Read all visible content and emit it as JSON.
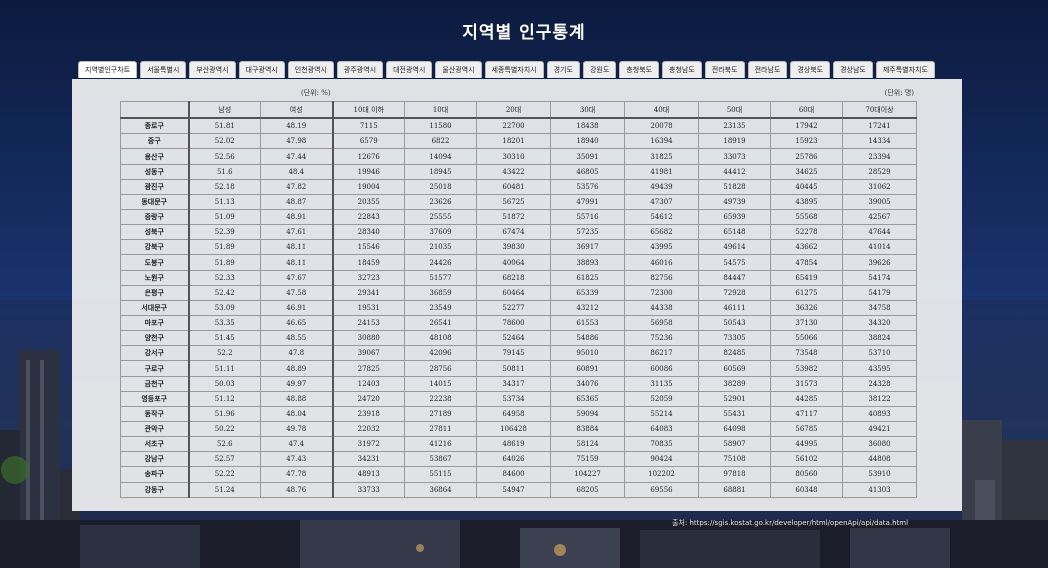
{
  "title": "지역별 인구통계",
  "tabs": [
    "서울특별시",
    "서울특별시",
    "부산광역시",
    "대구광역시",
    "인천광역시",
    "광주광역시",
    "대전광역시",
    "울산광역시",
    "세종특별자치시",
    "경기도",
    "강원도",
    "충청북도",
    "충청남도",
    "전라북도",
    "전라남도",
    "경상북도",
    "경상남도",
    "제주특별자치도"
  ],
  "tab_first": "지역별인구차트",
  "unit_percent": "(단위: %)",
  "unit_people": "(단위: 명)",
  "columns": [
    "",
    "남성",
    "여성",
    "10대 이하",
    "10대",
    "20대",
    "30대",
    "40대",
    "50대",
    "60대",
    "70대이상"
  ],
  "rows": [
    [
      "종로구",
      "51.81",
      "48.19",
      "7115",
      "11580",
      "22700",
      "18438",
      "20078",
      "23135",
      "17942",
      "17241"
    ],
    [
      "중구",
      "52.02",
      "47.98",
      "6579",
      "6822",
      "18201",
      "18940",
      "16394",
      "18919",
      "15923",
      "14334"
    ],
    [
      "용산구",
      "52.56",
      "47.44",
      "12676",
      "14094",
      "30310",
      "35091",
      "31825",
      "33073",
      "25786",
      "23394"
    ],
    [
      "성동구",
      "51.6",
      "48.4",
      "19946",
      "18945",
      "43422",
      "46805",
      "41981",
      "44412",
      "34625",
      "28529"
    ],
    [
      "광진구",
      "52.18",
      "47.82",
      "19004",
      "25018",
      "60481",
      "53576",
      "49439",
      "51828",
      "40445",
      "31062"
    ],
    [
      "동대문구",
      "51.13",
      "48.87",
      "20355",
      "23626",
      "56725",
      "47991",
      "47307",
      "49739",
      "43895",
      "39005"
    ],
    [
      "중랑구",
      "51.09",
      "48.91",
      "22843",
      "25555",
      "51872",
      "55716",
      "54612",
      "65939",
      "55568",
      "42567"
    ],
    [
      "성북구",
      "52.39",
      "47.61",
      "28340",
      "37609",
      "67474",
      "57235",
      "65682",
      "65148",
      "52278",
      "47644"
    ],
    [
      "강북구",
      "51.89",
      "48.11",
      "15546",
      "21035",
      "39830",
      "36917",
      "43995",
      "49614",
      "43662",
      "41014"
    ],
    [
      "도봉구",
      "51.89",
      "48.11",
      "18459",
      "24426",
      "40064",
      "38893",
      "46016",
      "54575",
      "47854",
      "39626"
    ],
    [
      "노원구",
      "52.33",
      "47.67",
      "32723",
      "51577",
      "68218",
      "61825",
      "82756",
      "84447",
      "65419",
      "54174"
    ],
    [
      "은평구",
      "52.42",
      "47.58",
      "29341",
      "36859",
      "60464",
      "65339",
      "72300",
      "72928",
      "61275",
      "54179"
    ],
    [
      "서대문구",
      "53.09",
      "46.91",
      "19531",
      "23549",
      "52277",
      "43212",
      "44338",
      "46111",
      "36326",
      "34758"
    ],
    [
      "마포구",
      "53.35",
      "46.65",
      "24153",
      "26541",
      "78600",
      "61553",
      "56958",
      "50543",
      "37130",
      "34320"
    ],
    [
      "양천구",
      "51.45",
      "48.55",
      "30880",
      "48108",
      "52464",
      "54886",
      "75236",
      "73305",
      "55066",
      "38824"
    ],
    [
      "강서구",
      "52.2",
      "47.8",
      "39067",
      "42096",
      "79145",
      "95010",
      "86217",
      "82485",
      "73548",
      "53710"
    ],
    [
      "구로구",
      "51.11",
      "48.89",
      "27825",
      "28756",
      "50811",
      "60891",
      "60086",
      "60569",
      "53982",
      "43595"
    ],
    [
      "금천구",
      "50.03",
      "49.97",
      "12403",
      "14015",
      "34317",
      "34076",
      "31135",
      "38289",
      "31573",
      "24328"
    ],
    [
      "영등포구",
      "51.12",
      "48.88",
      "24720",
      "22238",
      "53734",
      "65365",
      "52059",
      "52901",
      "44285",
      "38122"
    ],
    [
      "동작구",
      "51.96",
      "48.04",
      "23918",
      "27189",
      "64958",
      "59094",
      "55214",
      "55431",
      "47117",
      "40893"
    ],
    [
      "관악구",
      "50.22",
      "49.78",
      "22032",
      "27811",
      "106428",
      "83884",
      "64083",
      "64098",
      "56785",
      "49421"
    ],
    [
      "서초구",
      "52.6",
      "47.4",
      "31972",
      "41216",
      "48619",
      "58124",
      "70835",
      "58907",
      "44995",
      "36080"
    ],
    [
      "강남구",
      "52.57",
      "47.43",
      "34231",
      "53867",
      "64026",
      "75159",
      "90424",
      "75108",
      "56102",
      "44808"
    ],
    [
      "송파구",
      "52.22",
      "47.78",
      "48913",
      "55115",
      "84600",
      "104227",
      "102202",
      "97818",
      "80560",
      "53910"
    ],
    [
      "강동구",
      "51.24",
      "48.76",
      "33733",
      "36864",
      "54947",
      "68205",
      "69556",
      "68881",
      "60348",
      "41303"
    ]
  ],
  "source": "출처: https://sgis.kostat.go.kr/developer/html/openApi/api/data.html"
}
